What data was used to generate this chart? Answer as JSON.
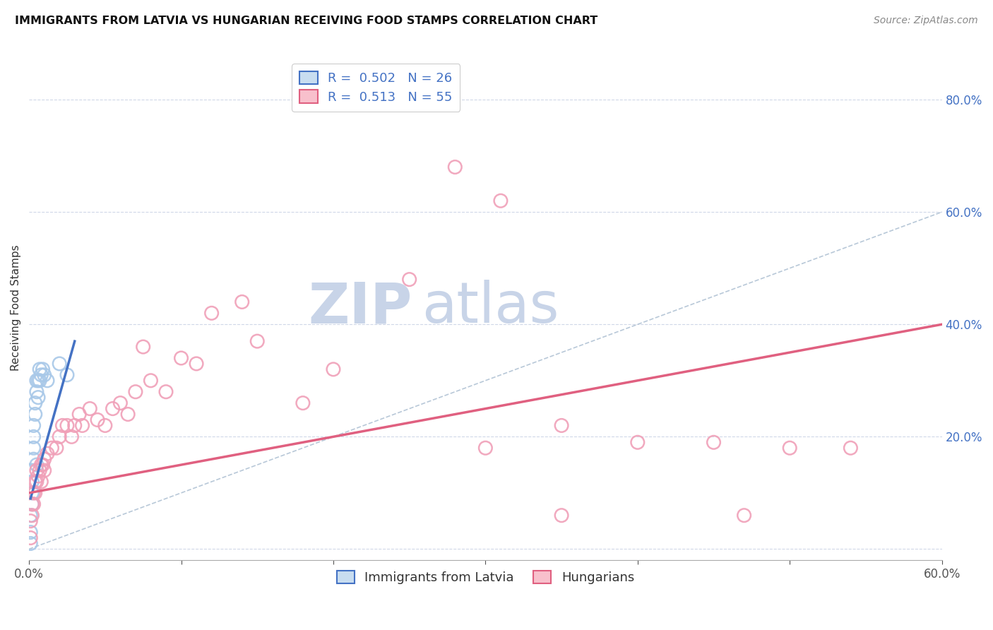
{
  "title": "IMMIGRANTS FROM LATVIA VS HUNGARIAN RECEIVING FOOD STAMPS CORRELATION CHART",
  "source": "Source: ZipAtlas.com",
  "ylabel": "Receiving Food Stamps",
  "xlim": [
    0.0,
    0.6
  ],
  "ylim": [
    -0.02,
    0.88
  ],
  "right_yticks": [
    0.0,
    0.2,
    0.4,
    0.6,
    0.8
  ],
  "grid_color": "#d0d8e8",
  "background_color": "#ffffff",
  "latvia_scatter_color": "#a8c8e8",
  "hungary_scatter_color": "#f0a0b8",
  "latvia_line_color": "#4472c4",
  "hungary_line_color": "#e06080",
  "ref_line_color": "#b8c8d8",
  "legend_color1": "#4472c4",
  "legend_color2": "#e06080",
  "legend_label1": "Immigrants from Latvia",
  "legend_label2": "Hungarians",
  "legend_facecolor1": "#c8ddf0",
  "legend_facecolor2": "#f8c0cc",
  "watermark_zip": "ZIP",
  "watermark_atlas": "atlas",
  "watermark_color_zip": "#c8d4e8",
  "watermark_color_atlas": "#c8d4e8",
  "latvia_scatter_x": [
    0.001,
    0.001,
    0.001,
    0.002,
    0.002,
    0.002,
    0.002,
    0.003,
    0.003,
    0.003,
    0.003,
    0.004,
    0.004,
    0.005,
    0.005,
    0.005,
    0.006,
    0.006,
    0.007,
    0.007,
    0.008,
    0.009,
    0.01,
    0.012,
    0.02,
    0.025
  ],
  "latvia_scatter_y": [
    0.01,
    0.03,
    0.06,
    0.08,
    0.1,
    0.12,
    0.14,
    0.16,
    0.18,
    0.2,
    0.22,
    0.24,
    0.26,
    0.15,
    0.28,
    0.3,
    0.27,
    0.3,
    0.3,
    0.32,
    0.31,
    0.32,
    0.31,
    0.3,
    0.33,
    0.31
  ],
  "hungary_scatter_x": [
    0.001,
    0.001,
    0.002,
    0.002,
    0.003,
    0.003,
    0.004,
    0.004,
    0.005,
    0.005,
    0.006,
    0.007,
    0.008,
    0.008,
    0.009,
    0.01,
    0.01,
    0.012,
    0.015,
    0.018,
    0.02,
    0.022,
    0.025,
    0.028,
    0.03,
    0.033,
    0.035,
    0.04,
    0.045,
    0.05,
    0.055,
    0.06,
    0.065,
    0.07,
    0.075,
    0.08,
    0.09,
    0.1,
    0.11,
    0.12,
    0.14,
    0.15,
    0.18,
    0.2,
    0.25,
    0.3,
    0.35,
    0.4,
    0.45,
    0.5,
    0.28,
    0.31,
    0.35,
    0.47,
    0.54
  ],
  "hungary_scatter_y": [
    0.02,
    0.05,
    0.06,
    0.08,
    0.08,
    0.1,
    0.1,
    0.12,
    0.12,
    0.14,
    0.13,
    0.14,
    0.12,
    0.15,
    0.15,
    0.14,
    0.16,
    0.17,
    0.18,
    0.18,
    0.2,
    0.22,
    0.22,
    0.2,
    0.22,
    0.24,
    0.22,
    0.25,
    0.23,
    0.22,
    0.25,
    0.26,
    0.24,
    0.28,
    0.36,
    0.3,
    0.28,
    0.34,
    0.33,
    0.42,
    0.44,
    0.37,
    0.26,
    0.32,
    0.48,
    0.18,
    0.22,
    0.19,
    0.19,
    0.18,
    0.68,
    0.62,
    0.06,
    0.06,
    0.18
  ],
  "latvia_line_x": [
    0.001,
    0.03
  ],
  "latvia_line_y": [
    0.09,
    0.37
  ],
  "hungary_line_x": [
    0.0,
    0.6
  ],
  "hungary_line_y": [
    0.1,
    0.4
  ],
  "ref_line_x": [
    0.0,
    0.88
  ],
  "ref_line_y": [
    0.0,
    0.88
  ],
  "title_fontsize": 11.5,
  "axis_label_fontsize": 11,
  "tick_fontsize": 12,
  "legend_fontsize": 13,
  "source_fontsize": 10,
  "scatter_size": 180
}
